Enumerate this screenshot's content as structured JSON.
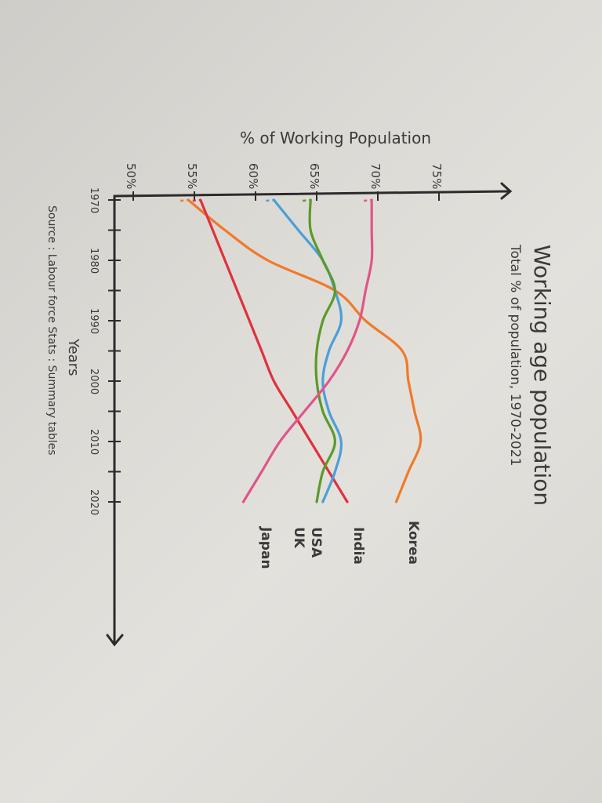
{
  "chart_data": {
    "type": "line",
    "title": "Working age population",
    "subtitle": "Total % of population, 1970-2021",
    "xlabel": "Years",
    "ylabel": "% of Working Population",
    "source": "Source : Labour force Stats : Summary tables",
    "xlim": [
      1970,
      2021
    ],
    "ylim": [
      50,
      75
    ],
    "x_ticks": [
      {
        "value": 1970,
        "label": "1970"
      },
      {
        "value": 1980,
        "label": "1980"
      },
      {
        "value": 1990,
        "label": "1990"
      },
      {
        "value": 2000,
        "label": "2000"
      },
      {
        "value": 2010,
        "label": "2010"
      },
      {
        "value": 2020,
        "label": "2020"
      }
    ],
    "y_ticks": [
      {
        "value": 50,
        "label": "50%"
      },
      {
        "value": 55,
        "label": "55%"
      },
      {
        "value": 60,
        "label": "60%"
      },
      {
        "value": 65,
        "label": "65%"
      },
      {
        "value": 70,
        "label": "70%"
      },
      {
        "value": 75,
        "label": "75%"
      }
    ],
    "grid": false,
    "legend": "labels at line ends",
    "series": [
      {
        "name": "Korea",
        "color": "#f07a2a",
        "x": [
          1970,
          1975,
          1980,
          1985,
          1990,
          1995,
          2000,
          2005,
          2010,
          2015,
          2020
        ],
        "y": [
          54.5,
          57.5,
          61,
          66.5,
          69,
          72,
          72.5,
          73,
          73.5,
          72.5,
          71.5
        ]
      },
      {
        "name": "India",
        "color": "#e0313d",
        "x": [
          1970,
          1975,
          1980,
          1985,
          1990,
          1995,
          2000,
          2005,
          2010,
          2015,
          2020
        ],
        "y": [
          55.5,
          56.5,
          57.5,
          58.5,
          59.5,
          60.5,
          61.5,
          63,
          64.5,
          66,
          67.5
        ]
      },
      {
        "name": "USA",
        "color": "#4a9fd8",
        "x": [
          1970,
          1975,
          1980,
          1985,
          1990,
          1995,
          2000,
          2005,
          2010,
          2015,
          2020
        ],
        "y": [
          61.5,
          63.5,
          65.5,
          66.5,
          67,
          66,
          65.5,
          66,
          67,
          66.5,
          65.5
        ]
      },
      {
        "name": "UK",
        "color": "#5a9a2a",
        "x": [
          1970,
          1975,
          1980,
          1985,
          1990,
          1995,
          2000,
          2005,
          2010,
          2015,
          2020
        ],
        "y": [
          64.5,
          64.5,
          65.5,
          66.5,
          65.5,
          65,
          65,
          65.5,
          66.5,
          65.5,
          65
        ]
      },
      {
        "name": "Japan",
        "color": "#e0558a",
        "x": [
          1970,
          1975,
          1980,
          1985,
          1990,
          1995,
          2000,
          2005,
          2010,
          2015,
          2020
        ],
        "y": [
          69.5,
          69.5,
          69.5,
          69,
          68.5,
          67.5,
          66,
          64,
          62,
          60.5,
          59
        ]
      }
    ]
  }
}
